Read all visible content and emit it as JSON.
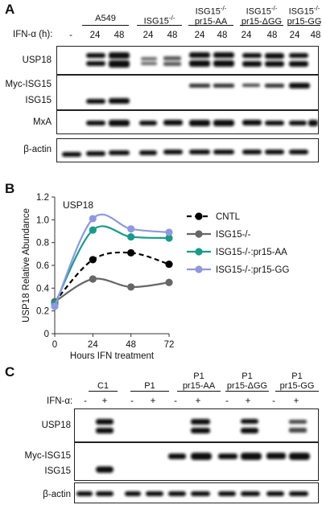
{
  "panelA": {
    "letter": "A",
    "treatment_label": "IFN-α (h):",
    "groups": [
      {
        "line1": "A549",
        "line2": ""
      },
      {
        "line1": "ISG15-/-",
        "line2": ""
      },
      {
        "line1": "ISG15-/-",
        "line2": "pr15-AA"
      },
      {
        "line1": "ISG15-/-",
        "line2": "pr15-ΔGG"
      },
      {
        "line1": "ISG15-/-",
        "line2": "pr15-GG"
      }
    ],
    "lanes": [
      "-",
      "24",
      "48",
      "24",
      "48",
      "24",
      "48",
      "24",
      "48",
      "24",
      "48"
    ],
    "rows": {
      "usp18": "USP18",
      "myc_isg15": "Myc-ISG15",
      "isg15": "ISG15",
      "mxa": "MxA",
      "actin": "β-actin"
    }
  },
  "panelB": {
    "letter": "B",
    "chart_data": {
      "type": "line",
      "title": "USP18",
      "xlabel": "Hours IFN treatment",
      "ylabel": "USP18 Relative Abundance",
      "x": [
        0,
        24,
        48,
        72
      ],
      "xticks": [
        "0",
        "24",
        "48",
        "72"
      ],
      "ylim": [
        0,
        1.2
      ],
      "yticks": [
        "0",
        "0.2",
        "0.4",
        "0.6",
        "0.8",
        "1.0",
        "1.2"
      ],
      "legend_position": "right",
      "series": [
        {
          "name": "CNTL",
          "color": "#000000",
          "dashed": true,
          "values": [
            0.28,
            0.65,
            0.71,
            0.61
          ]
        },
        {
          "name": "ISG15-/-",
          "color": "#666666",
          "dashed": false,
          "values": [
            0.28,
            0.48,
            0.41,
            0.45
          ]
        },
        {
          "name": "ISG15-/-:pr15-AA",
          "color": "#1a9a8a",
          "dashed": false,
          "values": [
            0.26,
            0.91,
            0.85,
            0.84
          ]
        },
        {
          "name": "ISG15-/-:pr15-GG",
          "color": "#8f99dd",
          "dashed": false,
          "values": [
            0.24,
            1.01,
            0.92,
            0.89
          ]
        }
      ]
    }
  },
  "panelC": {
    "letter": "C",
    "treatment_label": "IFN-α:",
    "groups": [
      {
        "line1": "C1",
        "line2": ""
      },
      {
        "line1": "P1",
        "line2": ""
      },
      {
        "line1": "P1",
        "line2": "pr15-AA"
      },
      {
        "line1": "P1",
        "line2": "pr15-ΔGG"
      },
      {
        "line1": "P1",
        "line2": "pr15-GG"
      }
    ],
    "lanes": [
      "-",
      "+",
      "-",
      "+",
      "-",
      "+",
      "-",
      "+",
      "-",
      "+"
    ],
    "rows": {
      "usp18": "USP18",
      "myc_isg15": "Myc-ISG15",
      "isg15": "ISG15",
      "actin": "β-actin"
    }
  }
}
